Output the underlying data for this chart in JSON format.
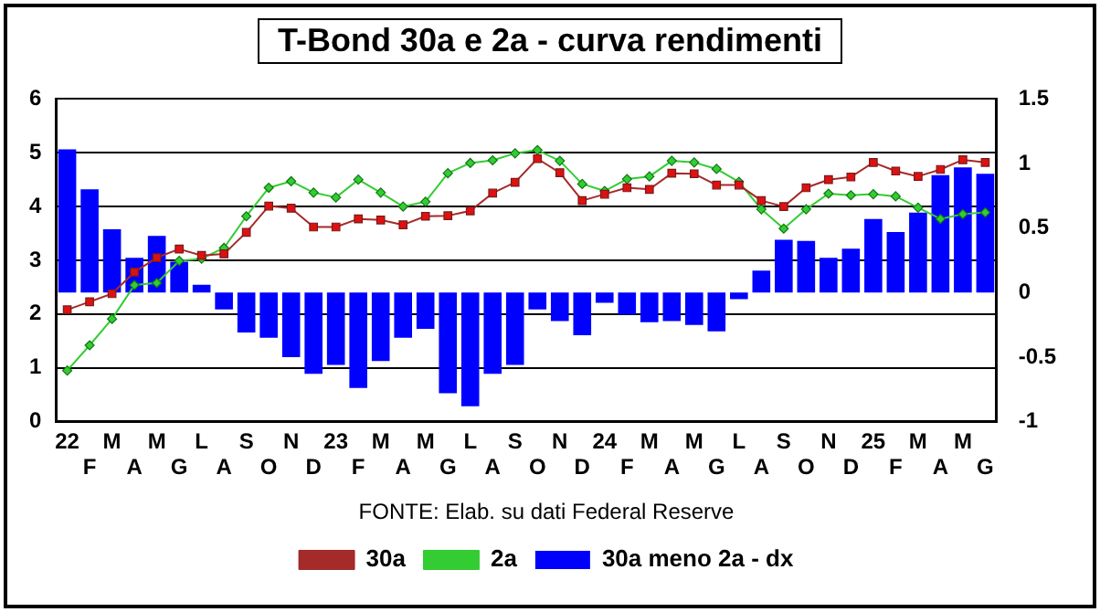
{
  "chart_data": {
    "type": "line",
    "title": "T-Bond 30a e 2a - curva rendimenti",
    "annotations": [
      "FONTE: Elab. su dati Federal Reserve"
    ],
    "categories": [
      "22",
      "F",
      "M",
      "A",
      "M",
      "G",
      "L",
      "A",
      "S",
      "O",
      "N",
      "D",
      "23",
      "F",
      "M",
      "A",
      "M",
      "G",
      "L",
      "A",
      "S",
      "O",
      "N",
      "D",
      "24",
      "F",
      "M",
      "A",
      "M",
      "G",
      "L",
      "A",
      "S",
      "O",
      "N",
      "D",
      "25",
      "F",
      "M",
      "A",
      "M",
      "G"
    ],
    "series": [
      {
        "name": "30a",
        "color": "#a52a2a",
        "marker": "square",
        "values": [
          2.08,
          2.23,
          2.38,
          2.78,
          3.05,
          3.21,
          3.09,
          3.12,
          3.52,
          4.01,
          3.97,
          3.62,
          3.62,
          3.77,
          3.75,
          3.66,
          3.82,
          3.83,
          3.92,
          4.25,
          4.45,
          4.89,
          4.63,
          4.11,
          4.23,
          4.35,
          4.32,
          4.62,
          4.61,
          4.4,
          4.4,
          4.11,
          4.0,
          4.35,
          4.5,
          4.55,
          4.82,
          4.66,
          4.56,
          4.69,
          4.87,
          4.82
        ]
      },
      {
        "name": "2a",
        "color": "#33cc33",
        "marker": "diamond",
        "values": [
          0.95,
          1.42,
          1.91,
          2.54,
          2.58,
          2.99,
          3.03,
          3.23,
          3.82,
          4.35,
          4.47,
          4.26,
          4.17,
          4.5,
          4.26,
          4.0,
          4.09,
          4.62,
          4.81,
          4.86,
          4.99,
          5.05,
          4.85,
          4.42,
          4.29,
          4.51,
          4.56,
          4.85,
          4.82,
          4.7,
          4.46,
          3.95,
          3.59,
          3.95,
          4.24,
          4.21,
          4.23,
          4.19,
          3.98,
          3.77,
          3.86,
          3.89
        ]
      },
      {
        "name": "30a meno 2a - dx",
        "type": "bar",
        "axis": "y2",
        "color": "#0000ff",
        "values": [
          1.11,
          0.8,
          0.49,
          0.27,
          0.44,
          0.24,
          0.06,
          -0.13,
          -0.31,
          -0.35,
          -0.5,
          -0.63,
          -0.56,
          -0.74,
          -0.53,
          -0.35,
          -0.28,
          -0.78,
          -0.88,
          -0.63,
          -0.56,
          -0.13,
          -0.22,
          -0.33,
          -0.08,
          -0.17,
          -0.23,
          -0.22,
          -0.25,
          -0.3,
          -0.05,
          0.17,
          0.41,
          0.4,
          0.27,
          0.34,
          0.57,
          0.47,
          0.62,
          0.91,
          0.97,
          0.92
        ]
      }
    ],
    "ylim": [
      0,
      6
    ],
    "yticks": [
      0,
      1,
      2,
      3,
      4,
      5,
      6
    ],
    "y2lim": [
      -1,
      1.5
    ],
    "y2ticks": [
      -1,
      -0.5,
      0,
      0.5,
      1,
      1.5
    ],
    "grid": "y",
    "legend": "bottom"
  }
}
